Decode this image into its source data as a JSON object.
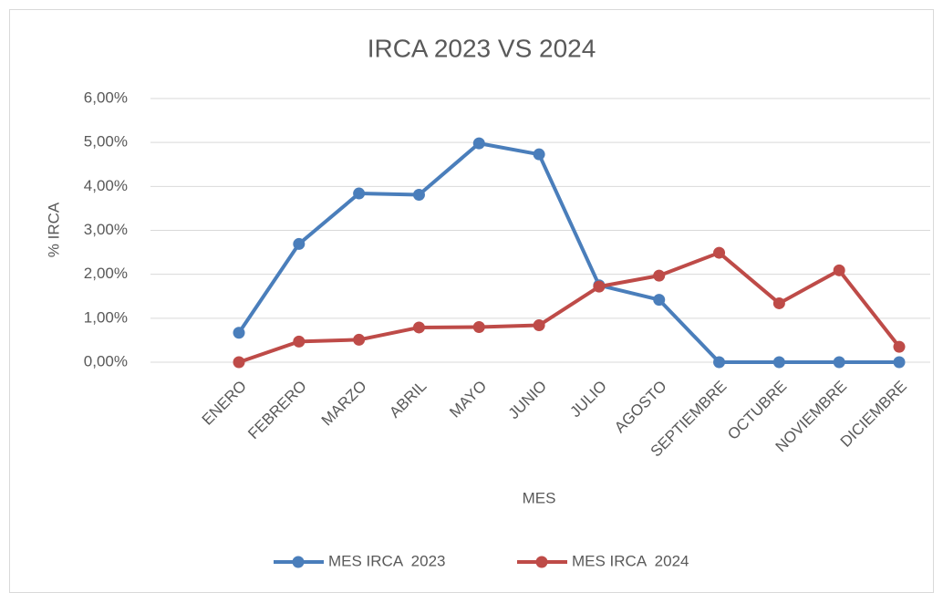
{
  "chart_data": {
    "type": "line",
    "title": "IRCA 2023 VS 2024",
    "x_label": "MES",
    "y_label": "% IRCA",
    "categories": [
      "ENERO",
      "FEBRERO",
      "MARZO",
      "ABRIL",
      "MAYO",
      "JUNIO",
      "JULIO",
      "AGOSTO",
      "SEPTIEMBRE",
      "OCTUBRE",
      "NOVIEMBRE",
      "DICIEMBRE"
    ],
    "series": [
      {
        "name": "MES IRCA  2023",
        "color": "#4a7ebb",
        "values": [
          0.67,
          2.69,
          3.84,
          3.81,
          4.98,
          4.73,
          1.75,
          1.42,
          0,
          0,
          0,
          0
        ]
      },
      {
        "name": "MES IRCA  2024",
        "color": "#be4b48",
        "values": [
          0,
          0.47,
          0.51,
          0.79,
          0.8,
          0.84,
          1.72,
          1.97,
          2.49,
          1.34,
          2.09,
          0.35
        ]
      }
    ],
    "ylim": [
      0,
      6
    ],
    "yticks": [
      {
        "value": 0,
        "label": "0,00%"
      },
      {
        "value": 1,
        "label": "1,00%"
      },
      {
        "value": 2,
        "label": "2,00%"
      },
      {
        "value": 3,
        "label": "3,00%"
      },
      {
        "value": 4,
        "label": "4,00%"
      },
      {
        "value": 5,
        "label": "5,00%"
      },
      {
        "value": 6,
        "label": "6,00%"
      }
    ],
    "grid": true,
    "legend": "bottom"
  }
}
